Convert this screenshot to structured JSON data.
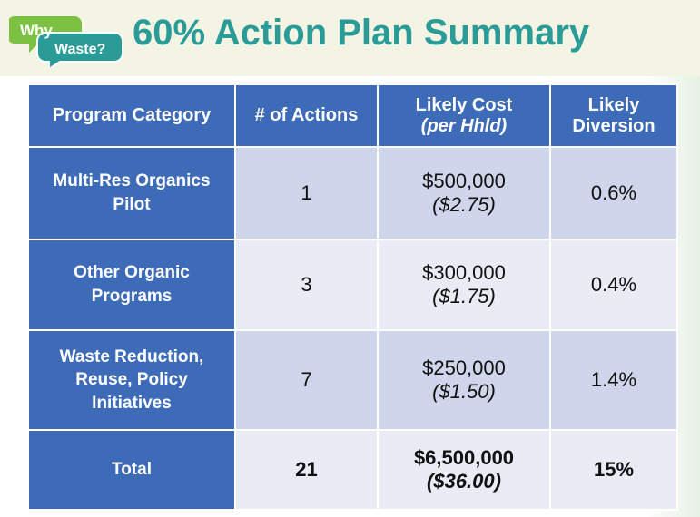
{
  "header": {
    "logo": {
      "top": "Why",
      "bottom": "Waste?"
    },
    "title": "60% Action Plan Summary"
  },
  "table": {
    "columns": [
      {
        "text": "Program Category"
      },
      {
        "text": "# of Actions"
      },
      {
        "text": "Likely Cost",
        "subtext": "(per Hhld)"
      },
      {
        "text": "Likely Diversion"
      }
    ],
    "rows": [
      {
        "category": "Multi-Res Organics Pilot",
        "actions": "1",
        "cost": "$500,000",
        "per_hhld": "($2.75)",
        "diversion": "0.6%"
      },
      {
        "category": "Other Organic Programs",
        "actions": "3",
        "cost": "$300,000",
        "per_hhld": "($1.75)",
        "diversion": "0.4%"
      },
      {
        "category": "Waste Reduction, Reuse, Policy Initiatives",
        "actions": "7",
        "cost": "$250,000",
        "per_hhld": "($1.50)",
        "diversion": "1.4%"
      }
    ],
    "total": {
      "category": "Total",
      "actions": "21",
      "cost": "$6,500,000",
      "per_hhld": "($36.00)",
      "diversion": "15%"
    }
  }
}
